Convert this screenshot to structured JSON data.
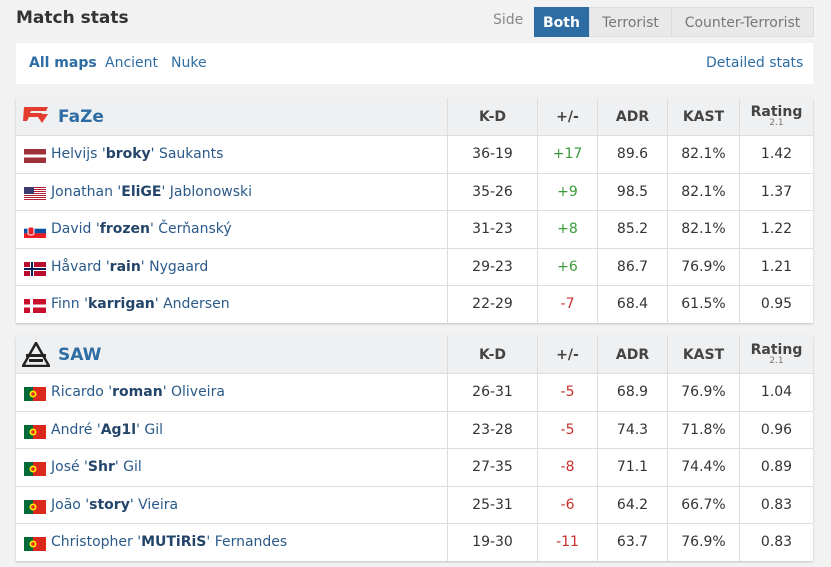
{
  "header": {
    "title": "Match stats",
    "side_label": "Side",
    "side_options": [
      "Both",
      "Terrorist",
      "Counter-Terrorist"
    ]
  },
  "maps": {
    "options": [
      "All maps",
      "Ancient",
      "Nuke"
    ],
    "detailed_stats": "Detailed stats"
  },
  "teams": [
    {
      "name": "FaZe",
      "columns": [
        "K-D",
        "+/-",
        "ADR",
        "KAST",
        "Rating"
      ],
      "rating_version": "2.1",
      "players": [
        {
          "pre": "Helvijs '",
          "nick": "broky",
          "post": "' Saukants",
          "kd": "36-19",
          "diff": "+17",
          "adr": 89.6,
          "kast": "82.1%",
          "rating": 1.42
        },
        {
          "pre": "Jonathan '",
          "nick": "EliGE",
          "post": "' Jablonowski",
          "kd": "35-26",
          "diff": "+9",
          "adr": 98.5,
          "kast": "82.1%",
          "rating": 1.37
        },
        {
          "pre": "David '",
          "nick": "frozen",
          "post": "' Čerňanský",
          "kd": "31-23",
          "diff": "+8",
          "adr": 85.2,
          "kast": "82.1%",
          "rating": 1.22
        },
        {
          "pre": "Håvard '",
          "nick": "rain",
          "post": "' Nygaard",
          "kd": "29-23",
          "diff": "+6",
          "adr": 86.7,
          "kast": "76.9%",
          "rating": 1.21
        },
        {
          "pre": "Finn '",
          "nick": "karrigan",
          "post": "' Andersen",
          "kd": "22-29",
          "diff": "-7",
          "adr": 68.4,
          "kast": "61.5%",
          "rating": 0.95
        }
      ]
    },
    {
      "name": "SAW",
      "columns": [
        "K-D",
        "+/-",
        "ADR",
        "KAST",
        "Rating"
      ],
      "rating_version": "2.1",
      "players": [
        {
          "pre": "Ricardo '",
          "nick": "roman",
          "post": "' Oliveira",
          "kd": "26-31",
          "diff": "-5",
          "adr": 68.9,
          "kast": "76.9%",
          "rating": 1.04
        },
        {
          "pre": "André '",
          "nick": "Ag1l",
          "post": "' Gil",
          "kd": "23-28",
          "diff": "-5",
          "adr": 74.3,
          "kast": "71.8%",
          "rating": 0.96
        },
        {
          "pre": "José '",
          "nick": "Shr",
          "post": "' Gil",
          "kd": "27-35",
          "diff": "-8",
          "adr": 71.1,
          "kast": "74.4%",
          "rating": 0.89
        },
        {
          "pre": "João '",
          "nick": "story",
          "post": "' Vieira",
          "kd": "25-31",
          "diff": "-6",
          "adr": 64.2,
          "kast": "66.7%",
          "rating": 0.83
        },
        {
          "pre": "Christopher '",
          "nick": "MUTiRiS",
          "post": "' Fernandes",
          "kd": "19-30",
          "diff": "-11",
          "adr": 63.7,
          "kast": "76.9%",
          "rating": 0.83
        }
      ]
    }
  ]
}
